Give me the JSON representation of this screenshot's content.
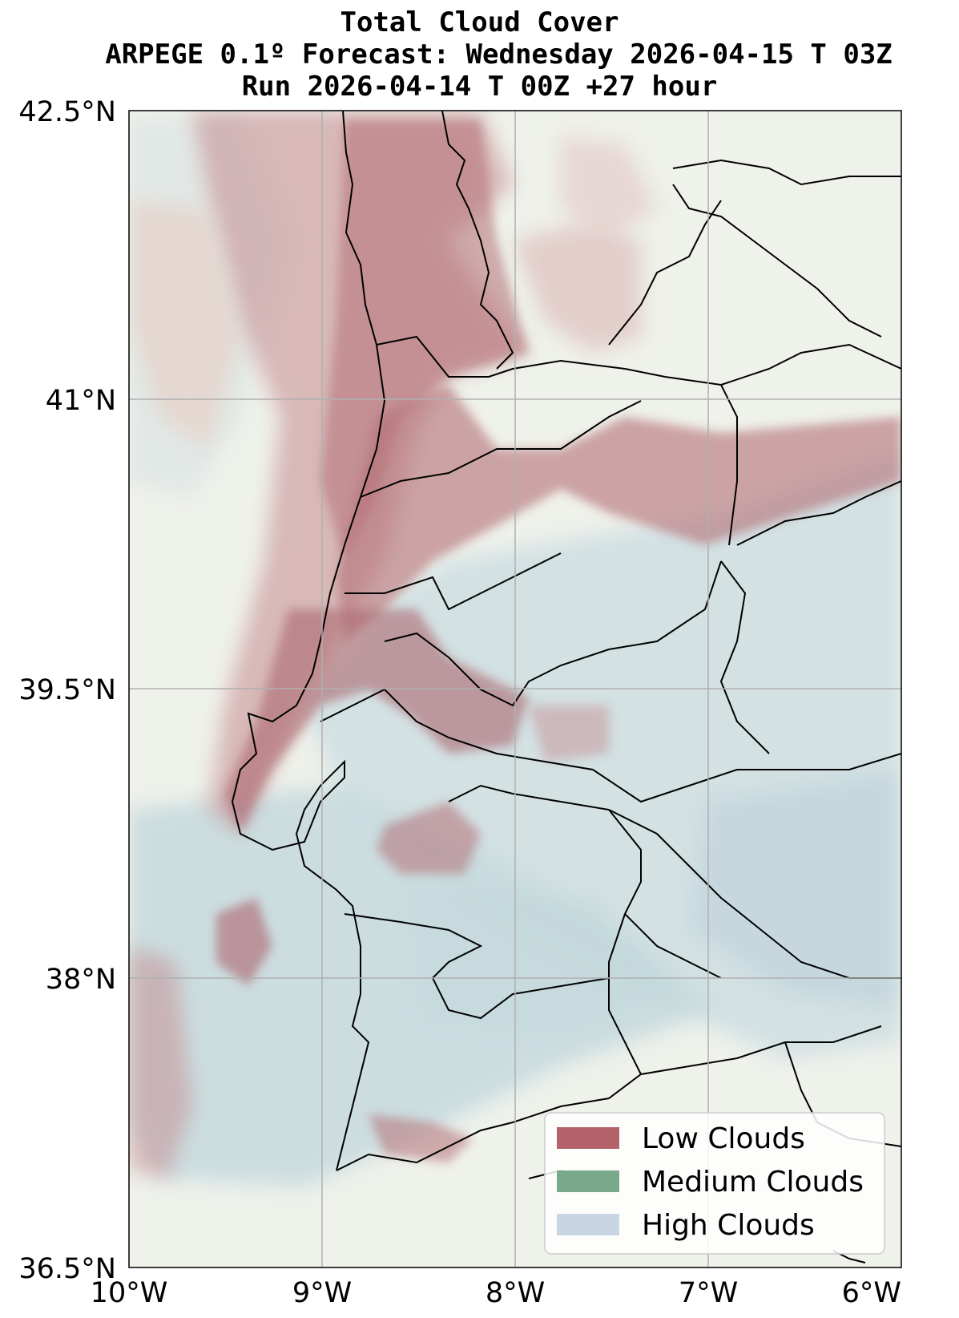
{
  "title": {
    "line1": "Total Cloud Cover",
    "line2": "ARPEGE 0.1º Forecast: Wednesday 2026-04-15 T 03Z",
    "line3": "Run 2026-04-14 T 00Z +27 hour"
  },
  "axes": {
    "lat_ticks": [
      "42.5°N",
      "41°N",
      "39.5°N",
      "38°N",
      "36.5°N"
    ],
    "lon_ticks": [
      "10°W",
      "9°W",
      "8°W",
      "7°W",
      "6°W"
    ],
    "lat_range": [
      36.5,
      42.5
    ],
    "lon_range": [
      -10,
      -6
    ],
    "grid": true
  },
  "legend": {
    "placement": "bottom-right",
    "items": [
      {
        "label": "Low Clouds",
        "color": "#b5616a"
      },
      {
        "label": "Medium Clouds",
        "color": "#7aa88a"
      },
      {
        "label": "High Clouds",
        "color": "#c9d5e2"
      }
    ]
  },
  "colors": {
    "background_land": "#eef0ea",
    "low_cloud": "#b5616a",
    "high_cloud": "#b8ccd6",
    "borders": "#000000"
  }
}
